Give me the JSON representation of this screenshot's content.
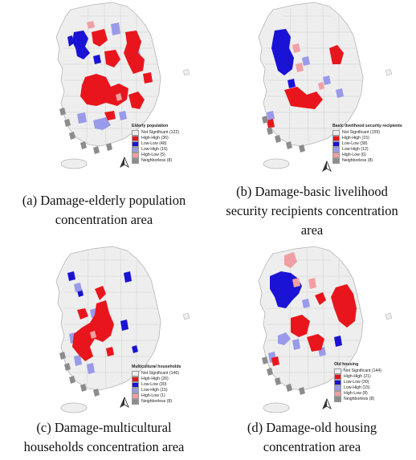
{
  "colors": {
    "not_significant": "#eeeeee",
    "high_high": "#e8161c",
    "low_low": "#1a12d4",
    "low_high": "#9a9aea",
    "high_low": "#f0a0a4",
    "neighborless": "#8c8c8c"
  },
  "panels": [
    {
      "id": "a",
      "legend": {
        "title": "Elderly population",
        "items": [
          "Not Significant (122)",
          "High-High (36)",
          "Low-Low (48)",
          "Low-High (16)",
          "High-Low (5)",
          "Neighborless (8)"
        ]
      },
      "caption": [
        "(a) Damage-elderly population",
        "concentration area"
      ]
    },
    {
      "id": "b",
      "legend": {
        "title": "Basic livelihood security recipients",
        "items": [
          "Not Significant (159)",
          "High-High (15)",
          "Low-Low (38)",
          "Low-High (12)",
          "High-Low (6)",
          "Neighborless (8)"
        ]
      },
      "caption": [
        "(b) Damage-basic livelihood",
        "security recipients concentration",
        "area"
      ]
    },
    {
      "id": "c",
      "legend": {
        "title": "Multicultural households",
        "items": [
          "Not Significant (146)",
          "High-High (26)",
          "Low-Low (30)",
          "Low-High (15)",
          "High-Low (1)",
          "Neighborless (8)"
        ]
      },
      "caption": [
        "(c) Damage-multicultural",
        "households concentration area"
      ]
    },
    {
      "id": "d",
      "legend": {
        "title": "Old housing",
        "items": [
          "Not Significant (144)",
          "High-High (21)",
          "Low-Low (30)",
          "Low-High (15)",
          "High-Low (8)",
          "Neighborless (8)"
        ]
      },
      "caption": [
        "(d) Damage-old housing",
        "concentration area"
      ]
    }
  ]
}
